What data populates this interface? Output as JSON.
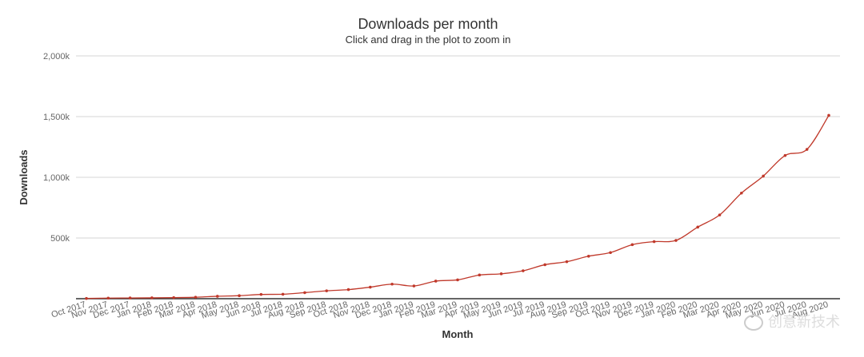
{
  "chart": {
    "title": "Downloads per month",
    "subtitle": "Click and drag in the plot to zoom in"
  },
  "watermark": {
    "text": "创意新技术"
  },
  "chart_data": {
    "type": "line",
    "title": "Downloads per month",
    "subtitle": "Click and drag in the plot to zoom in",
    "xlabel": "Month",
    "ylabel": "Downloads",
    "ylim": [
      0,
      2000000
    ],
    "yticks": [
      500000,
      1000000,
      1500000,
      2000000
    ],
    "ytick_labels": [
      "500k",
      "1,000k",
      "1,500k",
      "2,000k"
    ],
    "grid": true,
    "line_color": "#c0392b",
    "categories": [
      "Oct 2017",
      "Nov 2017",
      "Dec 2017",
      "Jan 2018",
      "Feb 2018",
      "Mar 2018",
      "Apr 2018",
      "May 2018",
      "Jun 2018",
      "Jul 2018",
      "Aug 2018",
      "Sep 2018",
      "Oct 2018",
      "Nov 2018",
      "Dec 2018",
      "Jan 2019",
      "Feb 2019",
      "Mar 2019",
      "Apr 2019",
      "May 2019",
      "Jun 2019",
      "Jul 2019",
      "Aug 2019",
      "Sep 2019",
      "Oct 2019",
      "Nov 2019",
      "Dec 2019",
      "Jan 2020",
      "Feb 2020",
      "Mar 2020",
      "Apr 2020",
      "May 2020",
      "Jun 2020",
      "Jul 2020",
      "Aug 2020"
    ],
    "series": [
      {
        "values": [
          2000,
          5000,
          6000,
          7000,
          9000,
          12000,
          20000,
          25000,
          35000,
          37000,
          50000,
          65000,
          75000,
          95000,
          120000,
          105000,
          145000,
          155000,
          195000,
          205000,
          230000,
          280000,
          305000,
          350000,
          380000,
          445000,
          470000,
          480000,
          590000,
          690000,
          870000,
          1010000,
          1180000,
          1230000,
          1510000
        ]
      }
    ]
  }
}
